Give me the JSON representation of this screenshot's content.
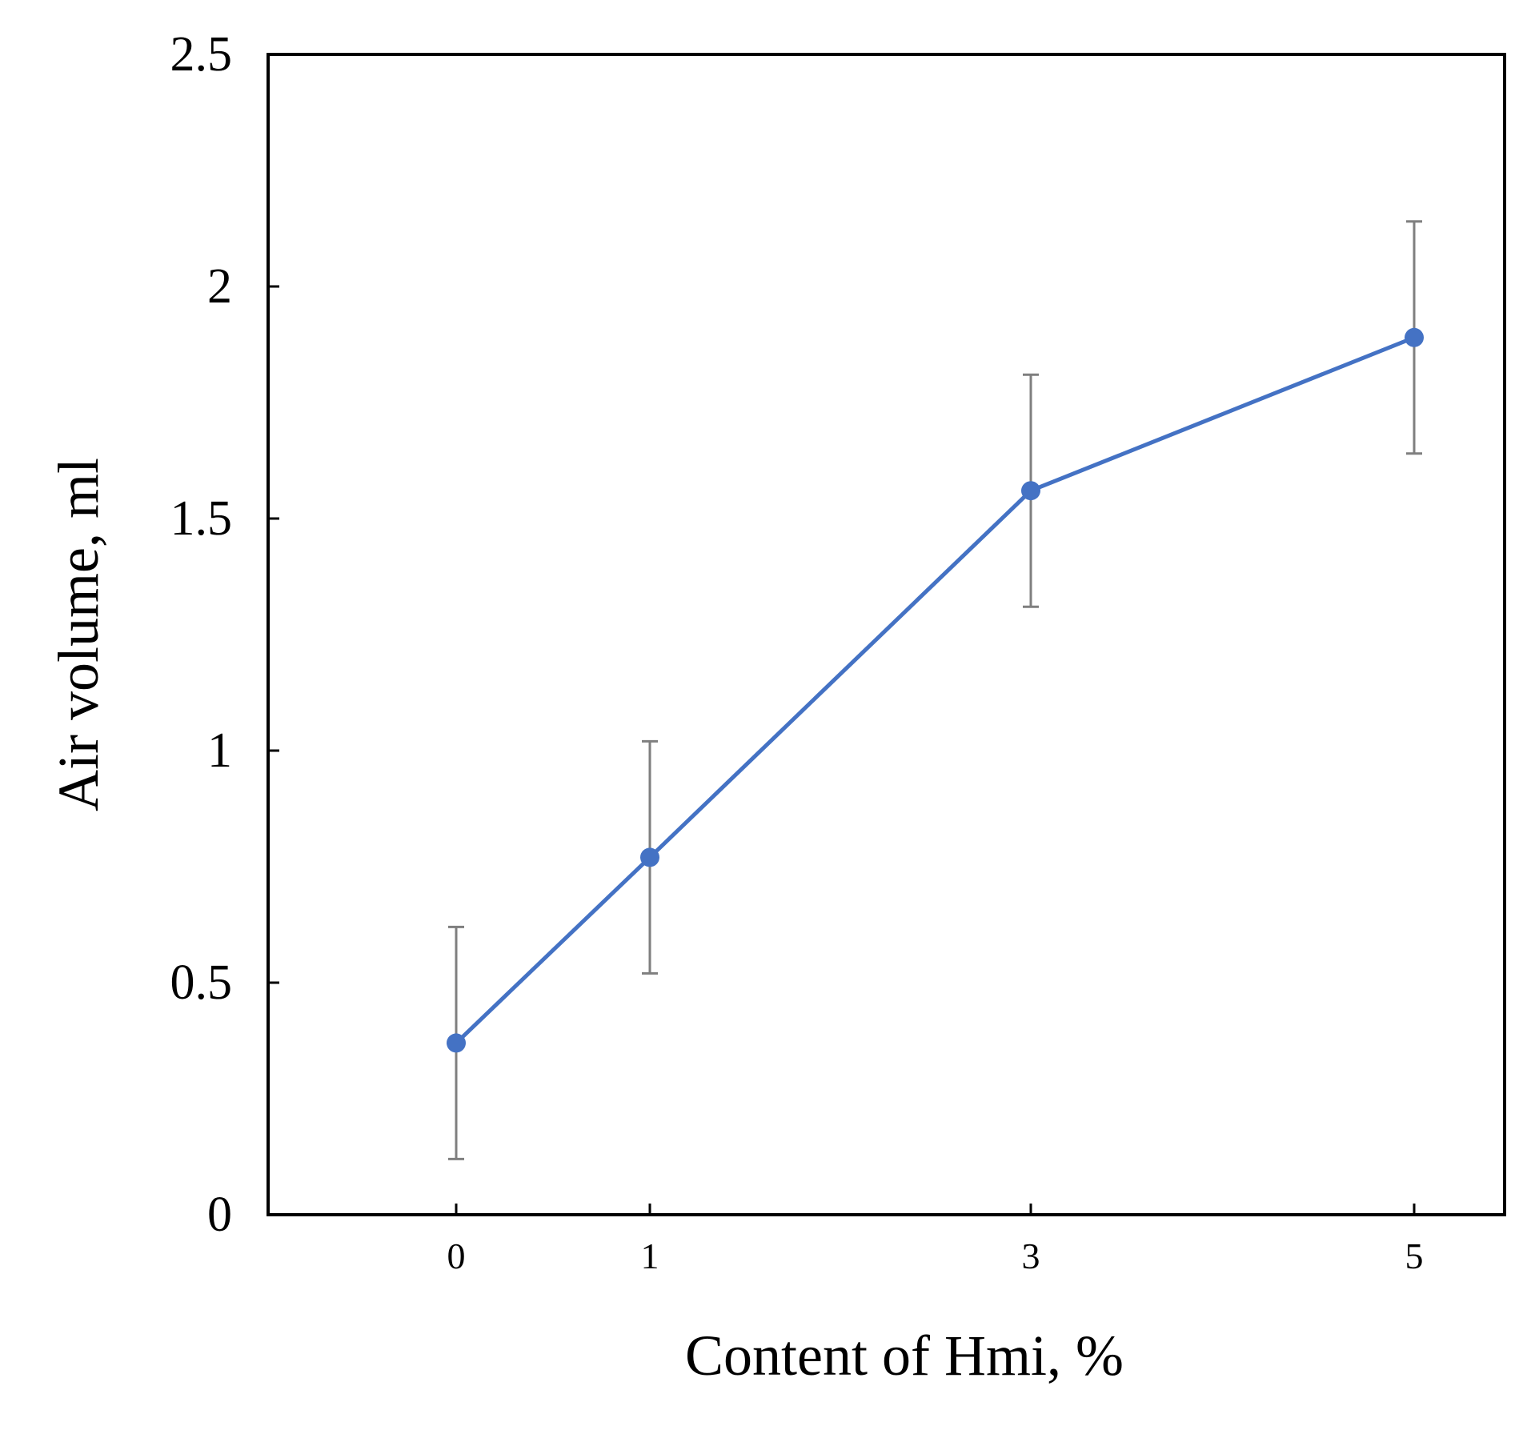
{
  "chart_data": {
    "type": "line",
    "title": "",
    "xlabel": "Content of Hmi, %",
    "ylabel": "Air volume, ml",
    "ylim": [
      0,
      2.5
    ],
    "yticks": [
      "0",
      "0.5",
      "1",
      "1.5",
      "2",
      "2.5"
    ],
    "xticks": [
      "0",
      "1",
      "3",
      "5"
    ],
    "grid": false,
    "legend": "none",
    "colors": {
      "line": "#4472C4",
      "marker": "#4472C4",
      "error_bar": "#7f7f7f",
      "axis": "#000000"
    },
    "series": [
      {
        "x": [
          "0",
          "1",
          "3",
          "5"
        ],
        "y": [
          0.37,
          0.77,
          1.56,
          1.89
        ],
        "error": [
          0.25,
          0.25,
          0.25,
          0.25
        ]
      }
    ]
  }
}
